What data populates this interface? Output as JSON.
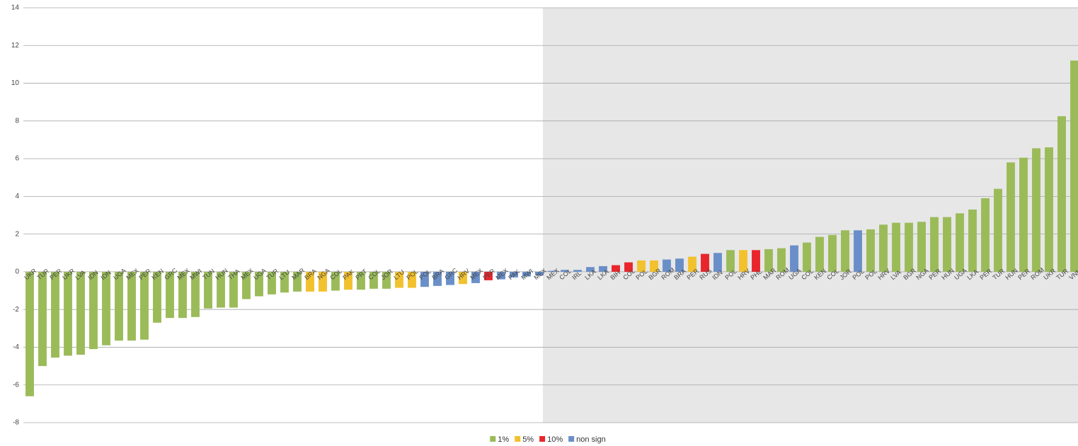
{
  "chart_data": {
    "type": "bar",
    "categories": [
      "UKR",
      "TUR",
      "PER",
      "UKR",
      "LVA",
      "IDN",
      "IDN",
      "UGA",
      "MEX",
      "PER",
      "KEN",
      "GRC",
      "MEX",
      "MWI",
      "TUN",
      "HUN",
      "THA",
      "MEX",
      "UGA",
      "TUR",
      "LTU",
      "MAR",
      "BRA",
      "NGA",
      "COL",
      "PAK",
      "PRT",
      "COL",
      "JOR",
      "LTU",
      "POL",
      "POL",
      "BRA",
      "GRC",
      "HRV",
      "MEX",
      "PER",
      "MEX",
      "PAK",
      "MWI",
      "MEX",
      "MEX",
      "COL",
      "IRL",
      "LKA",
      "LKA",
      "BIH",
      "COL",
      "POL",
      "BGR",
      "ROM",
      "BRA",
      "PER",
      "RUS",
      "IDN",
      "POL",
      "HRV",
      "PHL",
      "MAR",
      "ROM",
      "UGA",
      "COL",
      "KEN",
      "COL",
      "JOR",
      "POL",
      "POL",
      "HRV",
      "LVA",
      "BGR",
      "NGA",
      "PER",
      "HUN",
      "UGA",
      "LKA",
      "PER",
      "TUR",
      "HUN",
      "PER",
      "ROM",
      "UKR",
      "TUR",
      "VNM"
    ],
    "series": [
      {
        "name": "1%",
        "color": "#9bbb59",
        "values": [
          -6.6,
          -5.0,
          -4.55,
          -4.45,
          -4.4,
          -4.1,
          -3.9,
          -3.65,
          -3.65,
          -3.6,
          -2.7,
          -2.45,
          -2.45,
          -2.4,
          -1.95,
          -1.9,
          -1.9,
          -1.45,
          -1.3,
          -1.2,
          -1.1,
          -1.05,
          null,
          null,
          -1.0,
          null,
          -0.95,
          -0.9,
          -0.9,
          null,
          null,
          null,
          null,
          null,
          null,
          null,
          null,
          null,
          null,
          null,
          null,
          null,
          null,
          null,
          null,
          null,
          null,
          null,
          null,
          null,
          null,
          null,
          null,
          null,
          null,
          1.15,
          null,
          null,
          1.2,
          1.25,
          null,
          1.55,
          1.85,
          1.95,
          2.2,
          null,
          2.25,
          2.5,
          2.6,
          2.6,
          2.65,
          2.9,
          2.9,
          3.1,
          3.3,
          3.9,
          4.4,
          5.8,
          6.05,
          6.55,
          6.6,
          8.25,
          11.2
        ]
      },
      {
        "name": "5%",
        "color": "#f2c12e",
        "values": [
          null,
          null,
          null,
          null,
          null,
          null,
          null,
          null,
          null,
          null,
          null,
          null,
          null,
          null,
          null,
          null,
          null,
          null,
          null,
          null,
          null,
          null,
          -1.05,
          -1.05,
          null,
          -0.95,
          null,
          null,
          null,
          -0.85,
          -0.85,
          null,
          null,
          null,
          -0.65,
          null,
          null,
          null,
          null,
          null,
          null,
          null,
          null,
          null,
          null,
          null,
          null,
          null,
          0.6,
          0.6,
          null,
          null,
          0.8,
          null,
          null,
          null,
          1.15,
          null,
          null,
          null,
          null,
          null,
          null,
          null,
          null,
          null,
          null,
          null,
          null,
          null,
          null,
          null,
          null,
          null,
          null,
          null,
          null,
          null,
          null,
          null,
          null,
          null,
          null
        ]
      },
      {
        "name": "10%",
        "color": "#e8262c",
        "values": [
          null,
          null,
          null,
          null,
          null,
          null,
          null,
          null,
          null,
          null,
          null,
          null,
          null,
          null,
          null,
          null,
          null,
          null,
          null,
          null,
          null,
          null,
          null,
          null,
          null,
          null,
          null,
          null,
          null,
          null,
          null,
          null,
          null,
          null,
          null,
          null,
          -0.45,
          null,
          null,
          null,
          null,
          null,
          null,
          null,
          null,
          null,
          0.35,
          0.5,
          null,
          null,
          null,
          null,
          null,
          0.95,
          null,
          null,
          null,
          1.15,
          null,
          null,
          null,
          null,
          null,
          null,
          null,
          null,
          null,
          null,
          null,
          null,
          null,
          null,
          null,
          null,
          null,
          null,
          null,
          null,
          null,
          null,
          null,
          null,
          null
        ]
      },
      {
        "name": "non sign",
        "color": "#6a8fc8",
        "values": [
          null,
          null,
          null,
          null,
          null,
          null,
          null,
          null,
          null,
          null,
          null,
          null,
          null,
          null,
          null,
          null,
          null,
          null,
          null,
          null,
          null,
          null,
          null,
          null,
          null,
          null,
          null,
          null,
          null,
          null,
          null,
          -0.8,
          -0.75,
          -0.7,
          null,
          -0.6,
          null,
          -0.4,
          -0.3,
          -0.25,
          -0.2,
          0.05,
          0.1,
          0.1,
          0.25,
          0.3,
          null,
          null,
          null,
          null,
          0.65,
          0.7,
          null,
          null,
          1.0,
          null,
          null,
          null,
          null,
          null,
          1.4,
          null,
          null,
          null,
          null,
          2.2,
          null,
          null,
          null,
          null,
          null,
          null,
          null,
          null,
          null,
          null,
          null,
          null,
          null,
          null,
          null,
          null,
          null
        ]
      }
    ],
    "ylim": [
      -8,
      14
    ],
    "yticks": [
      -8,
      -6,
      -4,
      -2,
      0,
      2,
      4,
      6,
      8,
      10,
      12,
      14
    ],
    "grid": true,
    "legend": "bottom"
  }
}
